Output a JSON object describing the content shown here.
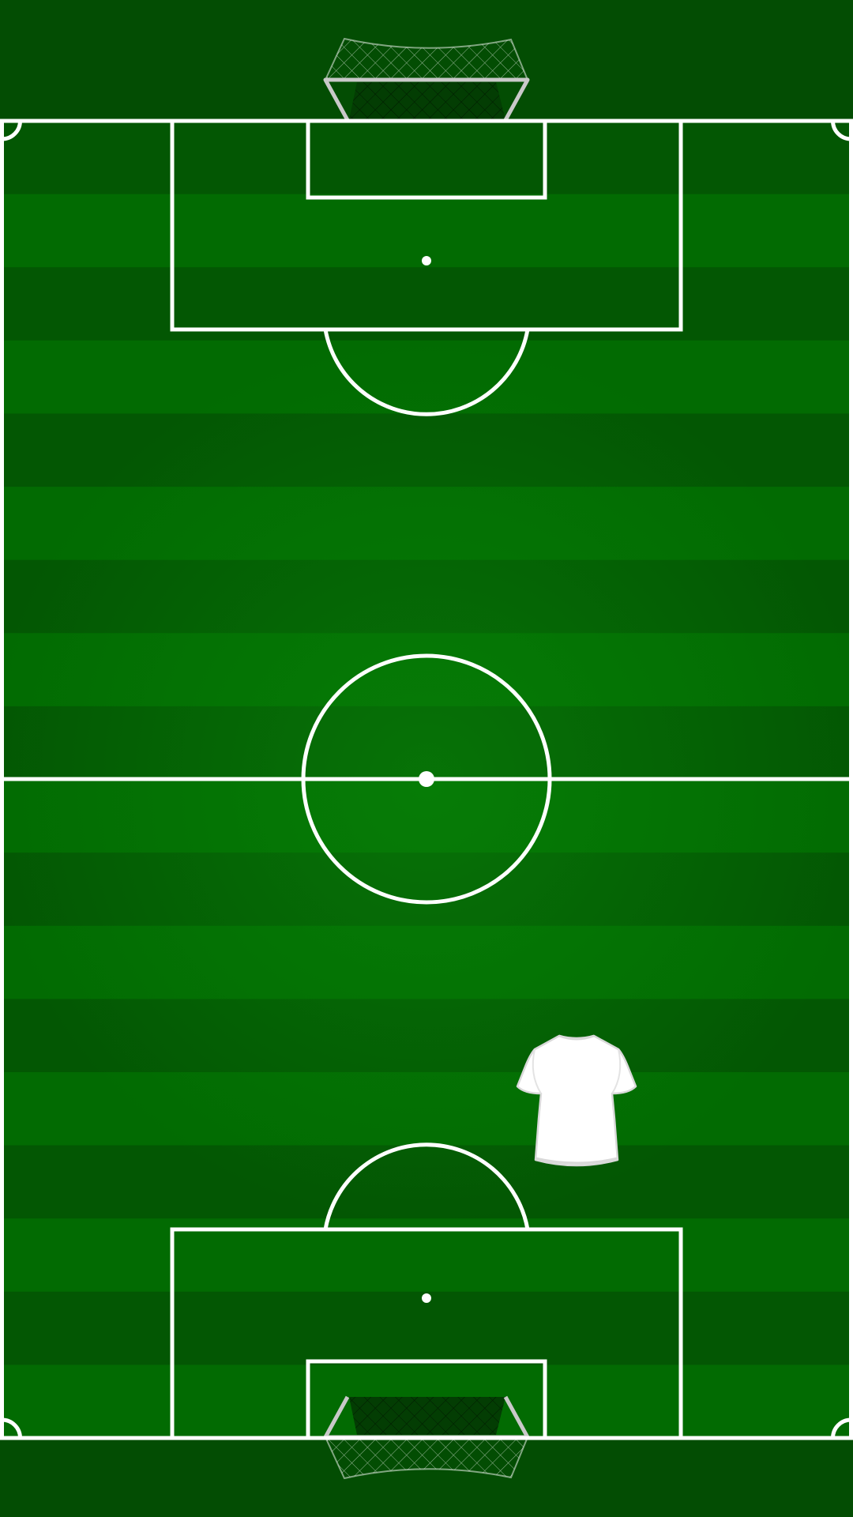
{
  "app": {
    "title": ""
  },
  "pitch": {
    "grass_dark": "#035703",
    "grass_light": "#026b02",
    "glow": "#0a8a0a",
    "outer_color": "#034d03",
    "line_color": "#ffffff",
    "stripes": 18
  },
  "goals": [
    {
      "name": "top-goal",
      "frame_color": "#c9c9c9",
      "net_color": "#ffffff"
    },
    {
      "name": "bottom-goal",
      "frame_color": "#c9c9c9",
      "net_color": "#ffffff"
    }
  ],
  "players": [
    {
      "name": "player-jersey",
      "shirt_color": "#ffffff",
      "trim_color": "#d9d9d9",
      "icon": "jersey-icon"
    }
  ]
}
